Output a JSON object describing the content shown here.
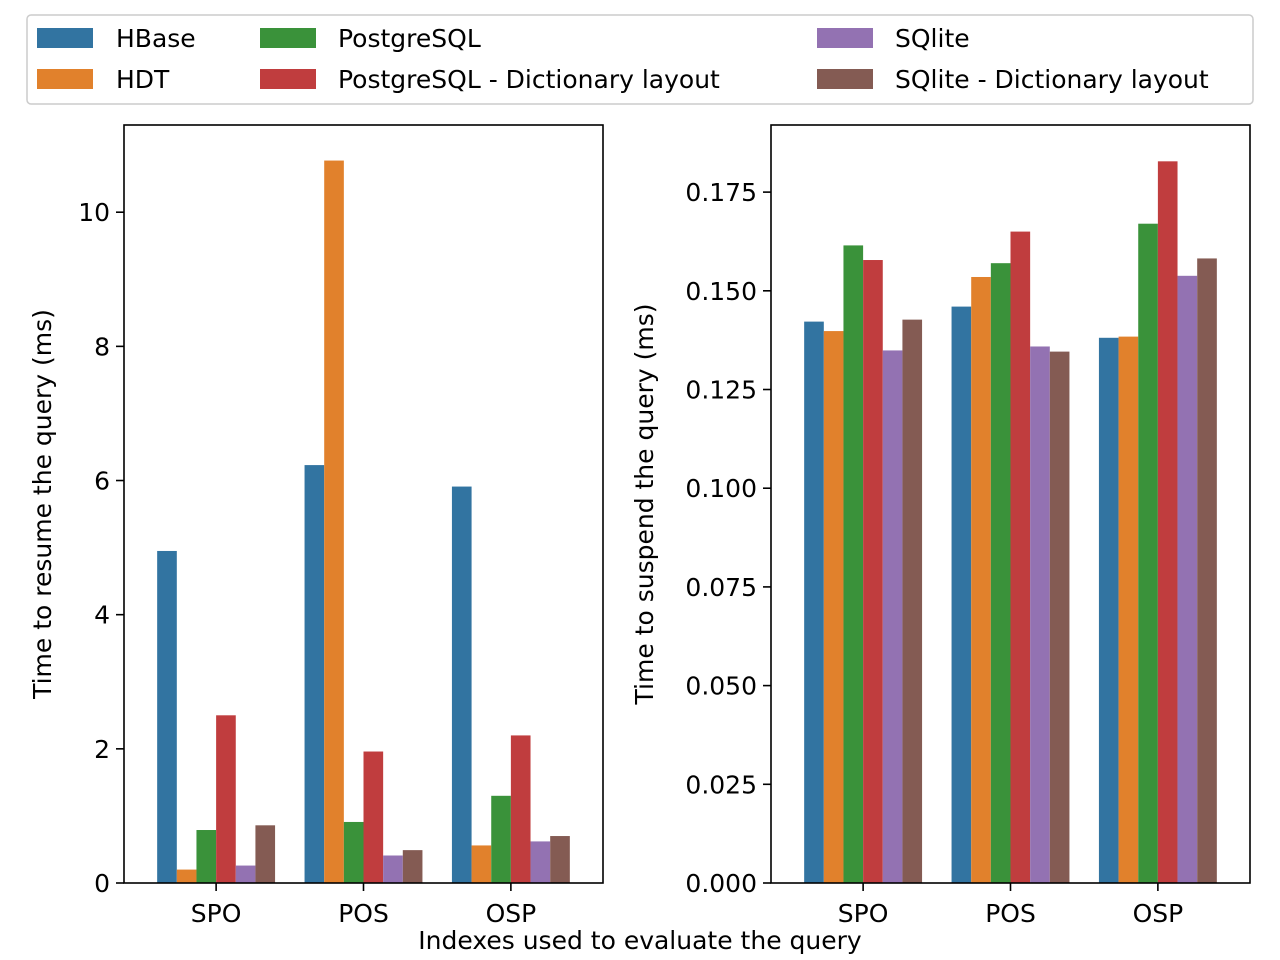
{
  "figure": {
    "xlabel": "Indexes used to evaluate the query"
  },
  "chart_data": [
    {
      "type": "bar",
      "categories": [
        "SPO",
        "POS",
        "OSP"
      ],
      "ylabel": "Time to resume the query (ms)",
      "ylim": [
        0,
        11.3
      ],
      "yticks": [
        "0",
        "2",
        "4",
        "6",
        "8",
        "10"
      ],
      "ytick_values": [
        0,
        2,
        4,
        6,
        8,
        10
      ],
      "series": [
        {
          "name": "HBase",
          "color": "#3274a1",
          "values": [
            4.95,
            6.23,
            5.91
          ]
        },
        {
          "name": "HDT",
          "color": "#e1812c",
          "values": [
            0.2,
            10.77,
            0.56
          ]
        },
        {
          "name": "PostgreSQL",
          "color": "#3a923a",
          "values": [
            0.79,
            0.91,
            1.3
          ]
        },
        {
          "name": "PostgreSQL - Dictionary layout",
          "color": "#c03d3e",
          "values": [
            2.5,
            1.96,
            2.2
          ]
        },
        {
          "name": "SQlite",
          "color": "#9372b2",
          "values": [
            0.26,
            0.41,
            0.62
          ]
        },
        {
          "name": "SQlite - Dictionary layout",
          "color": "#845b53",
          "values": [
            0.86,
            0.49,
            0.7
          ]
        }
      ]
    },
    {
      "type": "bar",
      "categories": [
        "SPO",
        "POS",
        "OSP"
      ],
      "ylabel": "Time to suspend the query (ms)",
      "ylim": [
        0,
        0.192
      ],
      "yticks": [
        "0.000",
        "0.025",
        "0.050",
        "0.075",
        "0.100",
        "0.125",
        "0.150",
        "0.175"
      ],
      "ytick_values": [
        0,
        0.025,
        0.05,
        0.075,
        0.1,
        0.125,
        0.15,
        0.175
      ],
      "series": [
        {
          "name": "HBase",
          "color": "#3274a1",
          "values": [
            0.1422,
            0.146,
            0.1381
          ]
        },
        {
          "name": "HDT",
          "color": "#e1812c",
          "values": [
            0.1398,
            0.1535,
            0.1384
          ]
        },
        {
          "name": "PostgreSQL",
          "color": "#3a923a",
          "values": [
            0.1615,
            0.157,
            0.167
          ]
        },
        {
          "name": "PostgreSQL - Dictionary layout",
          "color": "#c03d3e",
          "values": [
            0.1578,
            0.165,
            0.1828
          ]
        },
        {
          "name": "SQlite",
          "color": "#9372b2",
          "values": [
            0.1349,
            0.1359,
            0.1538
          ]
        },
        {
          "name": "SQlite - Dictionary layout",
          "color": "#845b53",
          "values": [
            0.1427,
            0.1346,
            0.1582
          ]
        }
      ]
    }
  ],
  "legend": {
    "placement": "top",
    "items": [
      {
        "label": "HBase",
        "color": "#3274a1"
      },
      {
        "label": "HDT",
        "color": "#e1812c"
      },
      {
        "label": "PostgreSQL",
        "color": "#3a923a"
      },
      {
        "label": "PostgreSQL - Dictionary layout",
        "color": "#c03d3e"
      },
      {
        "label": "SQlite",
        "color": "#9372b2"
      },
      {
        "label": "SQlite - Dictionary layout",
        "color": "#845b53"
      }
    ]
  }
}
